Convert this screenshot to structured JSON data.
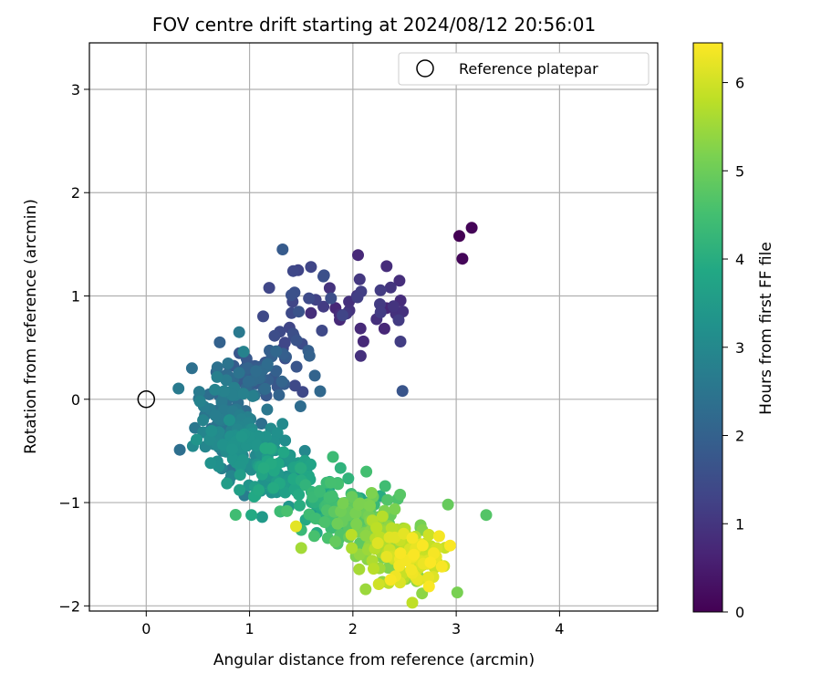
{
  "chart_data": {
    "type": "scatter",
    "title": "FOV centre drift starting at 2024/08/12 20:56:01",
    "xlabel": "Angular distance from reference (arcmin)",
    "ylabel": "Rotation from reference (arcmin)",
    "xlim": [
      -0.55,
      4.95
    ],
    "ylim": [
      -2.05,
      3.45
    ],
    "xticks": [
      0,
      1,
      2,
      3,
      4
    ],
    "yticks": [
      -2,
      -1,
      0,
      1,
      2,
      3
    ],
    "grid": true,
    "legend": {
      "label": "Reference platepar",
      "position": "top-right"
    },
    "reference_point": {
      "x": 0,
      "y": 0
    },
    "colorbar": {
      "label": "Hours from first FF file",
      "range": [
        0,
        6.45
      ],
      "ticks": [
        0,
        1,
        2,
        3,
        4,
        5,
        6
      ],
      "colormap": "viridis"
    },
    "clusters": [
      {
        "hours": [
          0.0,
          0.1
        ],
        "count": 3,
        "points": [
          [
            3.03,
            1.58
          ],
          [
            3.15,
            1.66
          ],
          [
            3.06,
            1.36
          ]
        ]
      },
      {
        "hours": [
          0.7,
          1.2
        ],
        "count": 32,
        "center": [
          2.15,
          0.95
        ],
        "spread": [
          0.27,
          0.22
        ]
      },
      {
        "hours": [
          1.2,
          1.7
        ],
        "count": 30,
        "center": [
          1.45,
          0.75
        ],
        "spread": [
          0.18,
          0.3
        ]
      },
      {
        "hours": [
          1.7,
          2.0
        ],
        "count": 3,
        "points": [
          [
            2.48,
            0.08
          ],
          [
            1.32,
            1.45
          ],
          [
            1.58,
            0.42
          ]
        ]
      },
      {
        "hours": [
          1.7,
          2.3
        ],
        "count": 60,
        "center": [
          1.05,
          0.22
        ],
        "spread": [
          0.22,
          0.13
        ]
      },
      {
        "hours": [
          2.3,
          2.9
        ],
        "count": 90,
        "center": [
          0.8,
          -0.15
        ],
        "spread": [
          0.14,
          0.22
        ]
      },
      {
        "hours": [
          2.8,
          3.4
        ],
        "count": 90,
        "center": [
          0.88,
          -0.45
        ],
        "spread": [
          0.2,
          0.13
        ]
      },
      {
        "hours": [
          3.2,
          4.0
        ],
        "count": 80,
        "center": [
          1.25,
          -0.75
        ],
        "spread": [
          0.22,
          0.13
        ]
      },
      {
        "hours": [
          3.8,
          4.6
        ],
        "count": 80,
        "center": [
          1.75,
          -1.0
        ],
        "spread": [
          0.22,
          0.14
        ]
      },
      {
        "hours": [
          4.5,
          5.2
        ],
        "count": 80,
        "center": [
          2.1,
          -1.2
        ],
        "spread": [
          0.2,
          0.15
        ]
      },
      {
        "hours": [
          5.1,
          5.8
        ],
        "count": 90,
        "center": [
          2.35,
          -1.4
        ],
        "spread": [
          0.2,
          0.13
        ]
      },
      {
        "hours": [
          5.7,
          6.45
        ],
        "count": 80,
        "center": [
          2.6,
          -1.55
        ],
        "spread": [
          0.16,
          0.13
        ]
      },
      {
        "hours": [
          4.5,
          6.4
        ],
        "count": 10,
        "points": [
          [
            2.13,
            -0.7
          ],
          [
            3.29,
            -1.12
          ],
          [
            2.92,
            -1.02
          ],
          [
            3.01,
            -1.87
          ],
          [
            2.67,
            -1.88
          ],
          [
            1.5,
            -1.44
          ],
          [
            2.2,
            -1.64
          ],
          [
            2.25,
            -1.79
          ],
          [
            1.45,
            -1.23
          ],
          [
            2.86,
            -1.62
          ]
        ]
      },
      {
        "hours": [
          2.6,
          3.0
        ],
        "count": 6,
        "points": [
          [
            0.9,
            0.65
          ],
          [
            0.95,
            -0.93
          ],
          [
            1.03,
            0.03
          ],
          [
            0.52,
            -0.02
          ],
          [
            0.55,
            -0.32
          ],
          [
            1.1,
            -0.5
          ]
        ]
      }
    ]
  }
}
